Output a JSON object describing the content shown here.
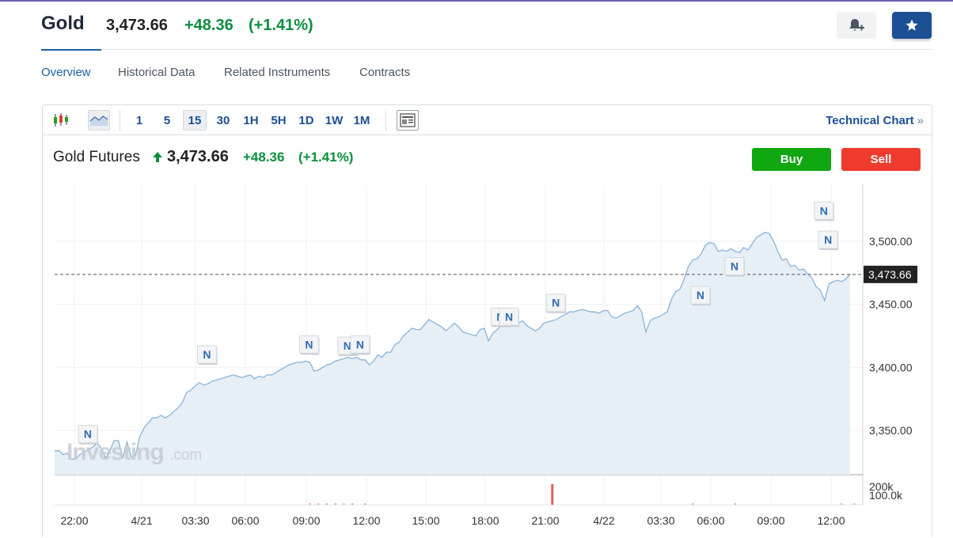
{
  "header": {
    "title": "Gold",
    "price": "3,473.66",
    "change": "+48.36",
    "change_pct": "(+1.41%)",
    "alert_icon": "bell-plus-icon",
    "watchlist_icon": "star-icon"
  },
  "tabs": [
    {
      "label": "Overview",
      "active": true
    },
    {
      "label": "Historical Data",
      "active": false
    },
    {
      "label": "Related Instruments",
      "active": false
    },
    {
      "label": "Contracts",
      "active": false
    }
  ],
  "toolbar": {
    "chart_type_icons": [
      "candlestick-icon",
      "area-chart-icon"
    ],
    "intervals": [
      "1",
      "5",
      "15",
      "30",
      "1H",
      "5H",
      "1D",
      "1W",
      "1M"
    ],
    "active_interval": "15",
    "news_icon": "news-panel-icon",
    "technical_chart_label": "Technical Chart",
    "technical_chart_chevron": "»"
  },
  "instrument": {
    "name": "Gold Futures",
    "direction_icon": "arrow-up-icon",
    "price": "3,473.66",
    "change": "+48.36",
    "change_pct": "(+1.41%)",
    "buy_label": "Buy",
    "sell_label": "Sell"
  },
  "watermark": {
    "brand": "Investing",
    "suffix": ".com"
  },
  "colors": {
    "accent": "#1d4f94",
    "positive": "#0a8f3f",
    "buy": "#10a710",
    "sell": "#ee3b2e",
    "line": "#8ab4d8",
    "area": "#e6eef6"
  },
  "chart_data": {
    "type": "area",
    "x_ticks": [
      "22:00",
      "4/21",
      "03:30",
      "06:00",
      "09:00",
      "12:00",
      "15:00",
      "18:00",
      "21:00",
      "4/22",
      "03:30",
      "06:00",
      "09:00",
      "12:00"
    ],
    "y_ticks": [
      "3,350.00",
      "3,400.00",
      "3,450.00",
      "3,500.00"
    ],
    "ylim": [
      3315,
      3545
    ],
    "last_value_label": "3,473.66",
    "last_value": 3473.66,
    "volume_ticks": [
      "200k",
      "100.0k"
    ],
    "series": [
      {
        "values": [
          3334,
          3334,
          3331,
          3332,
          3327,
          3328,
          3331,
          3333,
          3335,
          3337,
          3340,
          3336,
          3328,
          3334,
          3342,
          3342,
          3328,
          3341,
          3329,
          3330,
          3345,
          3352,
          3356,
          3360,
          3360,
          3362,
          3360,
          3362,
          3365,
          3368,
          3372,
          3380,
          3382,
          3385,
          3388,
          3386,
          3387,
          3389,
          3390,
          3391,
          3392,
          3393,
          3394,
          3393,
          3392,
          3393,
          3394,
          3391,
          3393,
          3392,
          3394,
          3394,
          3396,
          3398,
          3400,
          3402,
          3403,
          3404,
          3404,
          3405,
          3404,
          3397,
          3398,
          3400,
          3402,
          3403,
          3405,
          3406,
          3407,
          3408,
          3407,
          3408,
          3406,
          3406,
          3402,
          3405,
          3410,
          3408,
          3412,
          3412,
          3418,
          3420,
          3425,
          3428,
          3431,
          3430,
          3430,
          3434,
          3438,
          3436,
          3434,
          3432,
          3429,
          3432,
          3435,
          3432,
          3428,
          3427,
          3426,
          3425,
          3430,
          3431,
          3421,
          3427,
          3430,
          3433,
          3436,
          3435,
          3436,
          3435,
          3437,
          3433,
          3431,
          3429,
          3431,
          3435,
          3436,
          3437,
          3438,
          3440,
          3442,
          3444,
          3444,
          3445,
          3446,
          3445,
          3444,
          3444,
          3443,
          3445,
          3445,
          3440,
          3439,
          3441,
          3443,
          3444,
          3445,
          3449,
          3444,
          3428,
          3437,
          3439,
          3440,
          3442,
          3444,
          3454,
          3460,
          3462,
          3470,
          3480,
          3485,
          3486,
          3490,
          3497,
          3499,
          3498,
          3492,
          3493,
          3492,
          3494,
          3492,
          3491,
          3495,
          3493,
          3498,
          3503,
          3505,
          3507,
          3506,
          3500,
          3492,
          3485,
          3486,
          3480,
          3481,
          3477,
          3478,
          3474,
          3471,
          3464,
          3461,
          3453,
          3466,
          3468,
          3469,
          3468,
          3470,
          3474
        ]
      }
    ],
    "news_markers": [
      {
        "label": "N",
        "value": 3334,
        "index": 8
      },
      {
        "label": "N",
        "value": 3397,
        "index": 36
      },
      {
        "label": "N",
        "value": 3405,
        "index": 60
      },
      {
        "label": "N",
        "value": 3404,
        "index": 69
      },
      {
        "label": "N",
        "value": 3405,
        "index": 72
      },
      {
        "label": "N",
        "value": 3427,
        "index": 105
      },
      {
        "label": "N",
        "value": 3427,
        "index": 107
      },
      {
        "label": "N",
        "value": 3438,
        "index": 118
      },
      {
        "label": "N",
        "value": 3444,
        "index": 152
      },
      {
        "label": "N",
        "value": 3467,
        "index": 160
      },
      {
        "label": "N",
        "value": 3511,
        "index": 181
      },
      {
        "label": "N",
        "value": 3488,
        "index": 182
      }
    ],
    "volume_spike_index": 117
  }
}
